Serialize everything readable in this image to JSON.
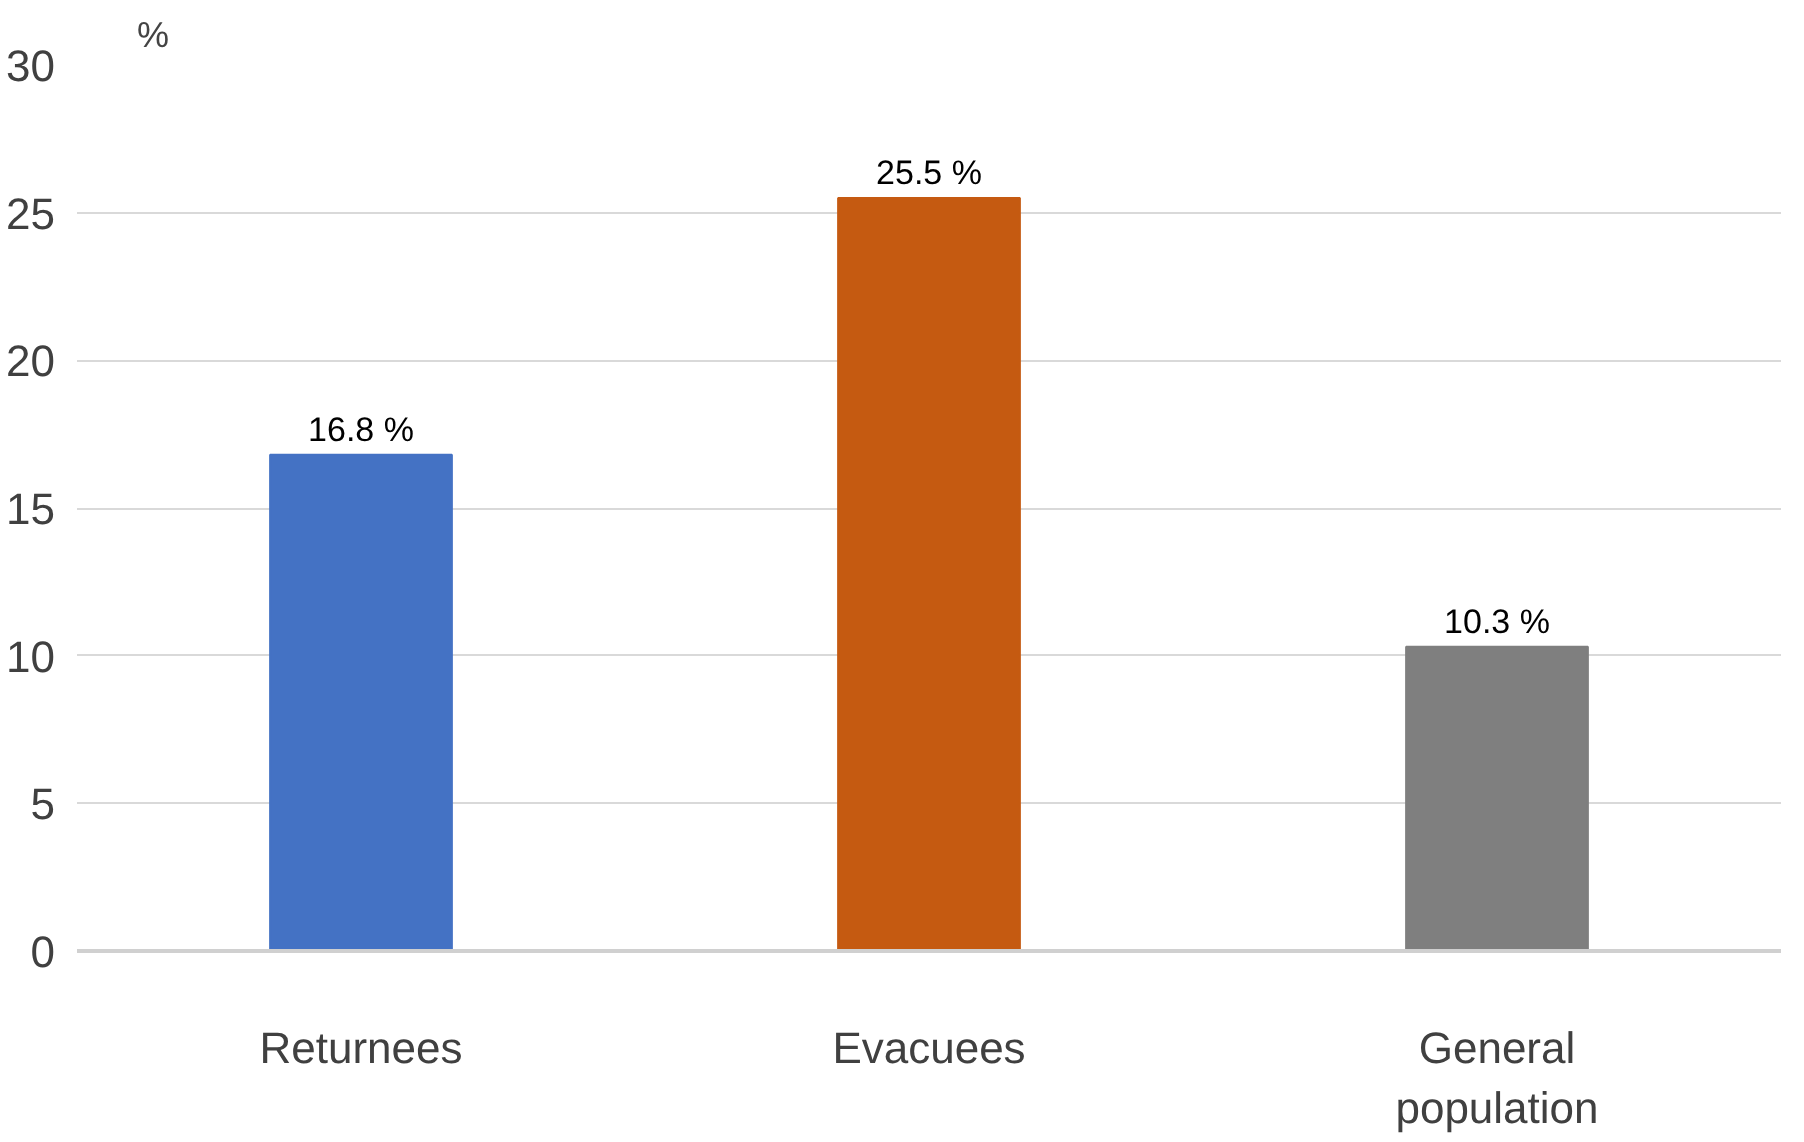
{
  "chart_data": {
    "type": "bar",
    "ylabel": "%",
    "categories": [
      "Returnees",
      "Evacuees",
      "General\npopulation"
    ],
    "values": [
      16.8,
      25.5,
      10.3
    ],
    "colors": [
      "#4472c4",
      "#c55a11",
      "#7f7f7f"
    ],
    "value_labels": [
      "16.8 %",
      "25.5 %",
      "10.3 %"
    ],
    "ylim": [
      0,
      30
    ],
    "yticks": [
      0,
      5,
      10,
      15,
      20,
      25,
      30
    ],
    "grid": "y"
  }
}
